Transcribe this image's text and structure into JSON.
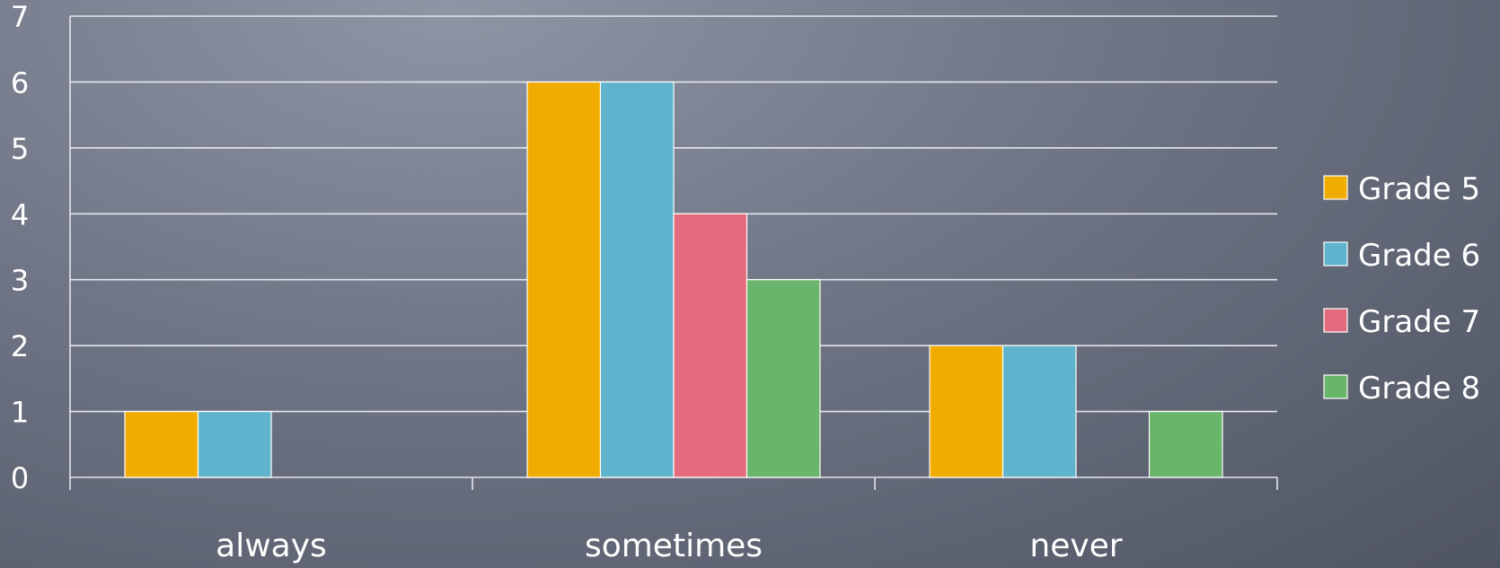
{
  "chart_data": {
    "type": "bar",
    "categories": [
      "always",
      "sometimes",
      "never"
    ],
    "series": [
      {
        "name": "Grade 5",
        "color": "#f0ac00",
        "values": [
          1,
          6,
          2
        ]
      },
      {
        "name": "Grade 6",
        "color": "#5fb3cc",
        "values": [
          1,
          6,
          2
        ]
      },
      {
        "name": "Grade 7",
        "color": "#e46b7d",
        "values": [
          0,
          4,
          0
        ]
      },
      {
        "name": "Grade 8",
        "color": "#6ab56c",
        "values": [
          0,
          3,
          1
        ]
      }
    ],
    "yticks": [
      "0",
      "1",
      "2",
      "3",
      "4",
      "5",
      "6",
      "7"
    ],
    "ylim": [
      0,
      7
    ],
    "grid": true,
    "legend_position": "right"
  }
}
